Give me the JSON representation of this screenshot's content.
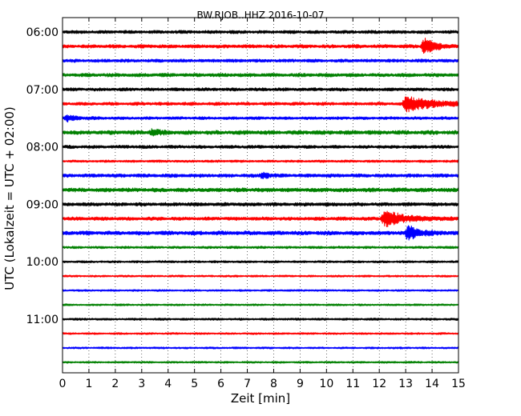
{
  "chart_data": {
    "type": "line",
    "title": "BW.RJOB..HHZ 2016-10-07",
    "xlabel": "Zeit  [min]",
    "ylabel": "UTC (Lokalzeit = UTC + 02:00)",
    "xlim": [
      0,
      15
    ],
    "x_ticks": [
      "0",
      "1",
      "2",
      "3",
      "4",
      "5",
      "6",
      "7",
      "8",
      "9",
      "10",
      "11",
      "12",
      "13",
      "14",
      "15"
    ],
    "y_ticks": [
      "06:00",
      "07:00",
      "08:00",
      "09:00",
      "10:00",
      "11:00"
    ],
    "grid": true,
    "trace_colors": [
      "#000000",
      "#ff0000",
      "#0000ff",
      "#008000"
    ],
    "traces": [
      {
        "start": "06:00",
        "amp": 0.2,
        "events": []
      },
      {
        "start": "06:15",
        "amp": 0.22,
        "events": [
          {
            "t": 13.7,
            "amp": 1.0,
            "dur": 0.8
          }
        ]
      },
      {
        "start": "06:30",
        "amp": 0.2,
        "events": []
      },
      {
        "start": "06:45",
        "amp": 0.22,
        "events": []
      },
      {
        "start": "07:00",
        "amp": 0.2,
        "events": []
      },
      {
        "start": "07:15",
        "amp": 0.2,
        "events": [
          {
            "t": 13.0,
            "amp": 1.0,
            "dur": 2.0
          }
        ]
      },
      {
        "start": "07:30",
        "amp": 0.18,
        "events": [
          {
            "t": 0.2,
            "amp": 0.35,
            "dur": 0.7
          }
        ]
      },
      {
        "start": "07:45",
        "amp": 0.25,
        "events": [
          {
            "t": 3.4,
            "amp": 0.35,
            "dur": 0.6
          }
        ]
      },
      {
        "start": "08:00",
        "amp": 0.2,
        "events": []
      },
      {
        "start": "08:15",
        "amp": 0.15,
        "events": []
      },
      {
        "start": "08:30",
        "amp": 0.22,
        "events": [
          {
            "t": 7.6,
            "amp": 0.4,
            "dur": 0.4
          }
        ]
      },
      {
        "start": "08:45",
        "amp": 0.25,
        "events": []
      },
      {
        "start": "09:00",
        "amp": 0.22,
        "events": []
      },
      {
        "start": "09:15",
        "amp": 0.22,
        "events": [
          {
            "t": 12.2,
            "amp": 1.0,
            "dur": 1.5
          }
        ]
      },
      {
        "start": "09:30",
        "amp": 0.25,
        "events": [
          {
            "t": 13.1,
            "amp": 1.0,
            "dur": 0.8
          }
        ]
      },
      {
        "start": "09:45",
        "amp": 0.15,
        "events": []
      },
      {
        "start": "10:00",
        "amp": 0.14,
        "events": []
      },
      {
        "start": "10:15",
        "amp": 0.12,
        "events": []
      },
      {
        "start": "10:30",
        "amp": 0.12,
        "events": []
      },
      {
        "start": "10:45",
        "amp": 0.12,
        "events": []
      },
      {
        "start": "11:00",
        "amp": 0.14,
        "events": []
      },
      {
        "start": "11:15",
        "amp": 0.12,
        "events": []
      },
      {
        "start": "11:30",
        "amp": 0.12,
        "events": []
      },
      {
        "start": "11:45",
        "amp": 0.12,
        "events": []
      }
    ]
  }
}
